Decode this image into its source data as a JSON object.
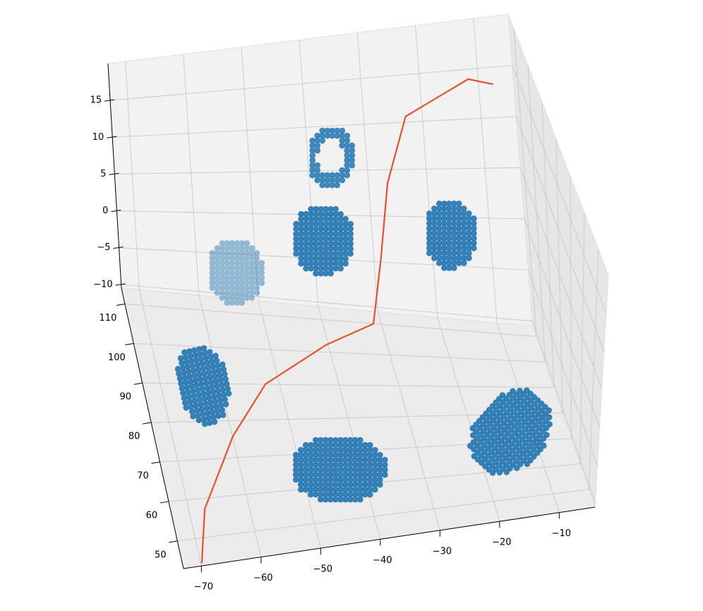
{
  "chart_data": {
    "type": "scatter3d",
    "xlim": [
      -73,
      -4
    ],
    "ylim": [
      43,
      114
    ],
    "zlim": [
      -10.5,
      20
    ],
    "xticks": [
      {
        "value": -70,
        "label": "−70"
      },
      {
        "value": -60,
        "label": "−60"
      },
      {
        "value": -50,
        "label": "−50"
      },
      {
        "value": -40,
        "label": "−40"
      },
      {
        "value": -30,
        "label": "−30"
      },
      {
        "value": -20,
        "label": "−20"
      },
      {
        "value": -10,
        "label": "−10"
      }
    ],
    "yticks": [
      50,
      60,
      70,
      80,
      90,
      100,
      110
    ],
    "zticks": [
      {
        "value": -10,
        "label": "−10"
      },
      {
        "value": -5,
        "label": "−5"
      },
      0,
      5,
      10,
      15
    ],
    "grid": true,
    "clusters": {
      "color": "#1f77b4",
      "x": [
        -56,
        -38.5,
        -41.5,
        -20,
        -64,
        -45,
        -15
      ],
      "y": [
        99,
        102,
        96,
        95,
        85,
        60,
        67
      ],
      "z": [
        0,
        12,
        5,
        5,
        -8,
        -8,
        -8
      ]
    },
    "line": {
      "color": "#e8512a",
      "x": [
        -70,
        -67.5,
        -60,
        -52.5,
        -40.5,
        -31.5,
        -29.5,
        -27.5,
        -23,
        -11.7,
        -7.5
      ],
      "y": [
        43,
        56.5,
        75,
        89,
        101,
        108.5,
        109,
        109,
        113,
        114,
        114
      ],
      "z": [
        -10,
        -10,
        -10,
        -10,
        -10,
        -10,
        -3,
        5.5,
        11,
        14,
        13.3
      ]
    }
  }
}
